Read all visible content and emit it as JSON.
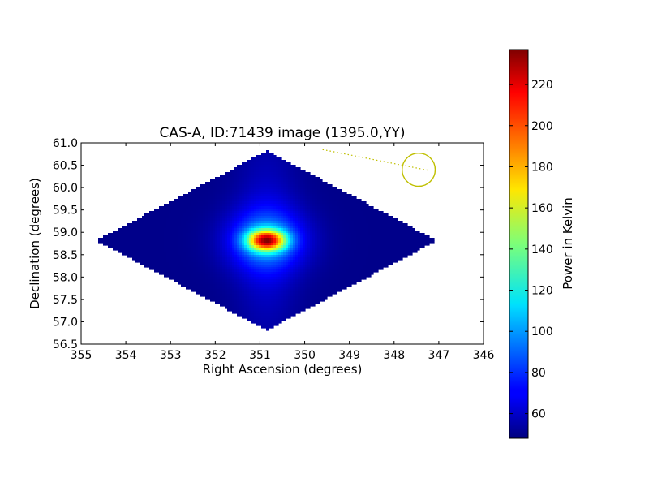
{
  "chart_data": {
    "type": "heatmap",
    "title": "CAS-A, ID:71439 image (1395.0,YY)",
    "xlabel": "Right Ascension (degrees)",
    "ylabel": "Declination (degrees)",
    "xlim": [
      355,
      346
    ],
    "ylim": [
      56.5,
      61.0
    ],
    "x_ticks": [
      "355",
      "354",
      "353",
      "352",
      "351",
      "350",
      "349",
      "348",
      "347",
      "346"
    ],
    "y_ticks": [
      "56.5",
      "57.0",
      "57.5",
      "58.0",
      "58.5",
      "59.0",
      "59.5",
      "60.0",
      "60.5",
      "61.0"
    ],
    "footprint": {
      "ra_center": 350.85,
      "dec_center": 58.82,
      "ra_min": 347.05,
      "ra_max": 354.65,
      "dec_min": 56.85,
      "dec_max": 60.85,
      "background_value": 50
    },
    "peak": {
      "ra": 350.85,
      "dec": 58.82,
      "value": 235
    },
    "circle_marker": {
      "ra": 347.45,
      "dec": 60.4,
      "radius_deg": 0.37,
      "color": "#bfbf00"
    },
    "dotted_line": {
      "from": {
        "ra": 349.6,
        "dec": 60.85
      },
      "to": {
        "ra": 347.2,
        "dec": 60.38
      },
      "color": "#bfbf00"
    },
    "colorbar": {
      "label": "Power in Kelvin",
      "vmin": 48,
      "vmax": 237,
      "ticks": [
        "60",
        "80",
        "100",
        "120",
        "140",
        "160",
        "180",
        "200",
        "220"
      ],
      "colormap": "jet"
    }
  }
}
